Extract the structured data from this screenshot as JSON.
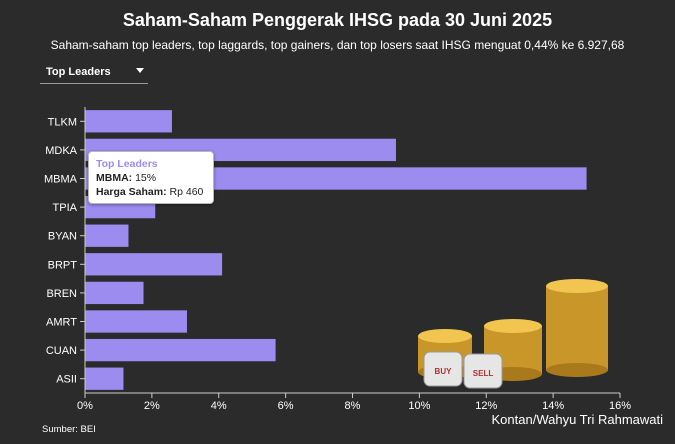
{
  "header": {
    "title": "Saham-Saham Penggerak IHSG pada 30 Juni 2025",
    "subtitle": "Saham-saham top leaders, top laggards, top gainers, dan top losers saat IHSG menguat 0,44% ke 6.927,68"
  },
  "dropdown": {
    "selected": "Top Leaders"
  },
  "chart_data": {
    "type": "bar",
    "orientation": "horizontal",
    "categories": [
      "TLKM",
      "MDKA",
      "MBMA",
      "TPIA",
      "BYAN",
      "BRPT",
      "BREN",
      "AMRT",
      "CUAN",
      "ASII"
    ],
    "values": [
      2.6,
      9.3,
      15.0,
      2.1,
      1.3,
      4.1,
      1.75,
      3.05,
      5.7,
      1.15
    ],
    "xlim": [
      0,
      16
    ],
    "xticks": [
      "0%",
      "2%",
      "4%",
      "6%",
      "8%",
      "10%",
      "12%",
      "14%",
      "16%"
    ],
    "bar_color": "#9d8cf0",
    "grid": false
  },
  "tooltip": {
    "title": "Top Leaders",
    "line1_label": "MBMA:",
    "line1_value": "15%",
    "line2_label": "Harga Saham:",
    "line2_value": "Rp 460"
  },
  "footer": {
    "source": "Sumber: BEI",
    "credit": "Kontan/Wahyu Tri Rahmawati"
  },
  "illustration": {
    "die_left": "BUY",
    "die_right": "SELL"
  }
}
